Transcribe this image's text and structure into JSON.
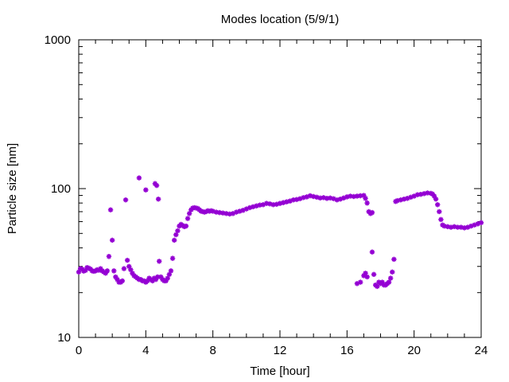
{
  "chart_data": {
    "type": "scatter",
    "title": "Modes location (5/9/1)",
    "xlabel": "Time [hour]",
    "ylabel": "Particle size [nm]",
    "xlim": [
      0,
      24
    ],
    "ylim": [
      10,
      1000
    ],
    "yscale": "log",
    "grid": false,
    "marker": "asterisk",
    "color": "#9400d3",
    "xticks": [
      0,
      4,
      8,
      12,
      16,
      20,
      24
    ],
    "xtick_labels": [
      "0",
      "4",
      "8",
      "12",
      "16",
      "20",
      "24"
    ],
    "yticks": [
      10,
      100,
      1000
    ],
    "ytick_labels": [
      "10",
      "100",
      "1000"
    ],
    "series": [
      {
        "name": "",
        "points": [
          [
            0.0,
            27.5
          ],
          [
            0.1,
            29.0
          ],
          [
            0.2,
            28.8
          ],
          [
            0.3,
            27.9
          ],
          [
            0.4,
            28.2
          ],
          [
            0.5,
            29.5
          ],
          [
            0.6,
            29.2
          ],
          [
            0.7,
            28.8
          ],
          [
            0.8,
            28.0
          ],
          [
            0.9,
            27.8
          ],
          [
            1.0,
            28.0
          ],
          [
            1.1,
            28.5
          ],
          [
            1.2,
            28.3
          ],
          [
            1.3,
            29.0
          ],
          [
            1.4,
            28.0
          ],
          [
            1.5,
            27.5
          ],
          [
            1.6,
            27.0
          ],
          [
            1.7,
            28.0
          ],
          [
            1.8,
            35.0
          ],
          [
            1.9,
            72.0
          ],
          [
            2.0,
            45.0
          ],
          [
            2.1,
            28.0
          ],
          [
            2.2,
            25.5
          ],
          [
            2.3,
            24.5
          ],
          [
            2.4,
            23.5
          ],
          [
            2.5,
            23.5
          ],
          [
            2.6,
            24.0
          ],
          [
            2.7,
            29.0
          ],
          [
            2.8,
            84.0
          ],
          [
            2.9,
            33.0
          ],
          [
            3.0,
            30.0
          ],
          [
            3.1,
            28.5
          ],
          [
            3.2,
            27.0
          ],
          [
            3.3,
            26.0
          ],
          [
            3.4,
            25.5
          ],
          [
            3.5,
            25.0
          ],
          [
            3.6,
            24.5
          ],
          [
            3.7,
            24.5
          ],
          [
            3.8,
            24.0
          ],
          [
            3.9,
            24.0
          ],
          [
            4.0,
            23.5
          ],
          [
            4.1,
            24.0
          ],
          [
            4.2,
            25.0
          ],
          [
            4.3,
            24.5
          ],
          [
            4.4,
            24.0
          ],
          [
            4.5,
            25.0
          ],
          [
            4.6,
            24.5
          ],
          [
            4.7,
            25.5
          ],
          [
            4.8,
            32.5
          ],
          [
            4.9,
            25.5
          ],
          [
            5.0,
            24.5
          ],
          [
            5.1,
            24.0
          ],
          [
            5.2,
            24.0
          ],
          [
            5.3,
            25.0
          ],
          [
            5.4,
            26.5
          ],
          [
            5.5,
            28.0
          ],
          [
            5.6,
            34.0
          ],
          [
            5.7,
            45.0
          ],
          [
            5.8,
            49.0
          ],
          [
            5.9,
            52.0
          ],
          [
            6.0,
            56.0
          ],
          [
            6.1,
            57.5
          ],
          [
            6.2,
            56.5
          ],
          [
            6.3,
            55.5
          ],
          [
            6.4,
            56.0
          ],
          [
            6.5,
            63.0
          ],
          [
            6.6,
            68.0
          ],
          [
            6.7,
            72.0
          ],
          [
            6.8,
            74.0
          ],
          [
            6.9,
            74.5
          ],
          [
            7.0,
            74.0
          ],
          [
            7.1,
            73.5
          ],
          [
            7.2,
            72.0
          ],
          [
            7.3,
            70.5
          ],
          [
            7.4,
            70.0
          ],
          [
            7.5,
            69.5
          ],
          [
            7.6,
            70.0
          ],
          [
            7.7,
            71.0
          ],
          [
            7.8,
            70.5
          ],
          [
            7.9,
            71.0
          ],
          [
            8.0,
            70.5
          ],
          [
            8.2,
            69.5
          ],
          [
            8.4,
            69.0
          ],
          [
            8.6,
            68.5
          ],
          [
            8.8,
            68.0
          ],
          [
            9.0,
            67.5
          ],
          [
            9.2,
            68.0
          ],
          [
            9.4,
            69.5
          ],
          [
            9.6,
            70.5
          ],
          [
            9.8,
            71.5
          ],
          [
            10.0,
            73.0
          ],
          [
            10.2,
            74.5
          ],
          [
            10.4,
            75.5
          ],
          [
            10.6,
            76.5
          ],
          [
            10.8,
            77.5
          ],
          [
            11.0,
            78.0
          ],
          [
            11.2,
            79.5
          ],
          [
            11.4,
            79.0
          ],
          [
            11.6,
            78.0
          ],
          [
            11.8,
            78.5
          ],
          [
            12.0,
            79.5
          ],
          [
            12.2,
            80.5
          ],
          [
            12.4,
            81.5
          ],
          [
            12.6,
            82.5
          ],
          [
            12.8,
            84.0
          ],
          [
            13.0,
            84.5
          ],
          [
            13.2,
            85.5
          ],
          [
            13.4,
            87.0
          ],
          [
            13.6,
            88.0
          ],
          [
            13.8,
            89.5
          ],
          [
            14.0,
            88.5
          ],
          [
            14.2,
            87.5
          ],
          [
            14.4,
            86.5
          ],
          [
            14.6,
            87.0
          ],
          [
            14.8,
            86.0
          ],
          [
            15.0,
            86.5
          ],
          [
            15.2,
            85.5
          ],
          [
            15.4,
            84.0
          ],
          [
            15.6,
            85.0
          ],
          [
            15.8,
            86.5
          ],
          [
            16.0,
            88.0
          ],
          [
            16.2,
            89.0
          ],
          [
            16.4,
            88.5
          ],
          [
            16.6,
            89.0
          ],
          [
            16.8,
            89.5
          ],
          [
            17.0,
            90.0
          ],
          [
            17.1,
            86.0
          ],
          [
            17.2,
            80.0
          ],
          [
            17.3,
            70.0
          ],
          [
            17.4,
            68.0
          ],
          [
            17.5,
            69.0
          ],
          [
            16.6,
            23.0
          ],
          [
            16.8,
            23.5
          ],
          [
            17.0,
            26.0
          ],
          [
            17.1,
            27.0
          ],
          [
            17.2,
            25.5
          ],
          [
            17.5,
            37.5
          ],
          [
            17.6,
            26.5
          ],
          [
            17.7,
            22.5
          ],
          [
            17.8,
            22.0
          ],
          [
            17.9,
            23.5
          ],
          [
            18.0,
            23.0
          ],
          [
            18.1,
            23.5
          ],
          [
            18.2,
            22.5
          ],
          [
            18.3,
            22.5
          ],
          [
            18.4,
            23.0
          ],
          [
            18.5,
            23.5
          ],
          [
            18.6,
            25.0
          ],
          [
            18.7,
            27.5
          ],
          [
            18.8,
            33.5
          ],
          [
            18.9,
            82.0
          ],
          [
            19.0,
            83.0
          ],
          [
            19.2,
            84.0
          ],
          [
            19.4,
            85.0
          ],
          [
            19.6,
            86.0
          ],
          [
            19.8,
            87.5
          ],
          [
            20.0,
            89.0
          ],
          [
            20.2,
            91.0
          ],
          [
            20.4,
            91.5
          ],
          [
            20.6,
            92.5
          ],
          [
            20.8,
            93.5
          ],
          [
            21.0,
            93.0
          ],
          [
            21.1,
            92.0
          ],
          [
            21.2,
            89.0
          ],
          [
            21.3,
            85.0
          ],
          [
            21.4,
            78.0
          ],
          [
            21.5,
            70.0
          ],
          [
            21.6,
            62.0
          ],
          [
            21.7,
            57.0
          ],
          [
            21.8,
            56.0
          ],
          [
            22.0,
            55.5
          ],
          [
            22.2,
            55.0
          ],
          [
            22.4,
            55.5
          ],
          [
            22.6,
            55.0
          ],
          [
            22.8,
            55.0
          ],
          [
            23.0,
            54.5
          ],
          [
            23.2,
            55.0
          ],
          [
            23.4,
            56.0
          ],
          [
            23.6,
            57.0
          ],
          [
            23.8,
            58.0
          ],
          [
            24.0,
            59.0
          ],
          [
            3.6,
            118.0
          ],
          [
            4.0,
            98.0
          ],
          [
            4.55,
            108.0
          ],
          [
            4.65,
            105.0
          ],
          [
            4.75,
            85.0
          ]
        ]
      }
    ]
  }
}
